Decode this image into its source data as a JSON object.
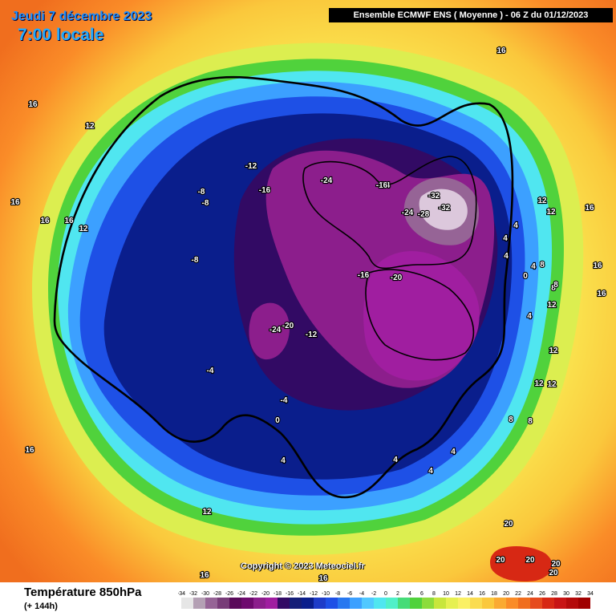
{
  "header": {
    "date": "Jeudi 7 décembre 2023",
    "local_time": "7:00 locale",
    "model_run": "Ensemble ECMWF ENS  ( Moyenne )  -  06 Z du 01/12/2023"
  },
  "footer": {
    "parameter": "Température 850hPa",
    "lead_time": "(+ 144h)"
  },
  "copyright": "Copyright © 2023 Meteociel.fr",
  "colors": {
    "very_cold_core": "#dcc8dc",
    "cold_purple": "#6a0a6a",
    "deep_blue": "#0a1e8c",
    "blue": "#1e50dc",
    "light_blue": "#3ca0ff",
    "cyan": "#50e6e6",
    "green": "#46c850",
    "yellow_green": "#c8e63c",
    "yellow": "#fae650",
    "orange_light": "#fac850",
    "orange": "#ff8c1e",
    "red": "#e6281e",
    "freezing_line": "#000000"
  },
  "scale": {
    "values": [
      -34,
      -32,
      -30,
      -28,
      -26,
      -24,
      -22,
      -20,
      -18,
      -16,
      -14,
      -12,
      -10,
      -8,
      -6,
      -4,
      -2,
      0,
      2,
      4,
      6,
      8,
      10,
      12,
      14,
      16,
      18,
      20,
      22,
      24,
      26,
      28,
      30,
      32,
      34
    ],
    "colors": [
      "#e6e6e6",
      "#b4a0b4",
      "#966496",
      "#783c78",
      "#5a0a5a",
      "#6e0a6e",
      "#8c1e8c",
      "#a01ea0",
      "#320a64",
      "#141e78",
      "#0a1e8c",
      "#1e3cc8",
      "#1e50e6",
      "#2878f0",
      "#3ca0ff",
      "#50c8ff",
      "#50e6f0",
      "#50f0c8",
      "#46dc78",
      "#50d23c",
      "#8cdc3c",
      "#c8e63c",
      "#e6f050",
      "#faf064",
      "#fadc50",
      "#fac83c",
      "#faaa32",
      "#fa8c28",
      "#f06e1e",
      "#e64b1e",
      "#d72814",
      "#c81414",
      "#b40a0a",
      "#a00000"
    ]
  },
  "contour_labels": [
    {
      "text": "-12"
    },
    {
      "text": "-16"
    },
    {
      "text": "-8"
    },
    {
      "text": "-8"
    },
    {
      "text": "-8"
    },
    {
      "text": "-24"
    },
    {
      "text": "-24"
    },
    {
      "text": "-24"
    },
    {
      "text": "-28"
    },
    {
      "text": "-32"
    },
    {
      "text": "-32"
    },
    {
      "text": "-16"
    },
    {
      "text": "-20"
    },
    {
      "text": "-24"
    },
    {
      "text": "-20"
    },
    {
      "text": "-12"
    },
    {
      "text": "-4"
    },
    {
      "text": "-4"
    },
    {
      "text": "0"
    },
    {
      "text": "4"
    },
    {
      "text": "4"
    },
    {
      "text": "4"
    },
    {
      "text": "4"
    },
    {
      "text": "4"
    },
    {
      "text": "4"
    },
    {
      "text": "4"
    },
    {
      "text": "0"
    },
    {
      "text": "8"
    },
    {
      "text": "8"
    },
    {
      "text": "8"
    },
    {
      "text": "12"
    },
    {
      "text": "12"
    },
    {
      "text": "12"
    },
    {
      "text": "12"
    },
    {
      "text": "12"
    },
    {
      "text": "12"
    },
    {
      "text": "16"
    },
    {
      "text": "16"
    },
    {
      "text": "16"
    },
    {
      "text": "16"
    },
    {
      "text": "16"
    },
    {
      "text": "16"
    },
    {
      "text": "16"
    },
    {
      "text": "16"
    },
    {
      "text": "16"
    },
    {
      "text": "16"
    },
    {
      "text": "20"
    },
    {
      "text": "20"
    },
    {
      "text": "20"
    },
    {
      "text": "20"
    },
    {
      "text": "20"
    },
    {
      "text": "12"
    },
    {
      "text": "8"
    },
    {
      "text": "4"
    },
    {
      "text": "12"
    },
    {
      "text": "8"
    },
    {
      "text": "4"
    },
    {
      "text": "-16"
    },
    {
      "text": "16"
    },
    {
      "text": "12"
    }
  ]
}
